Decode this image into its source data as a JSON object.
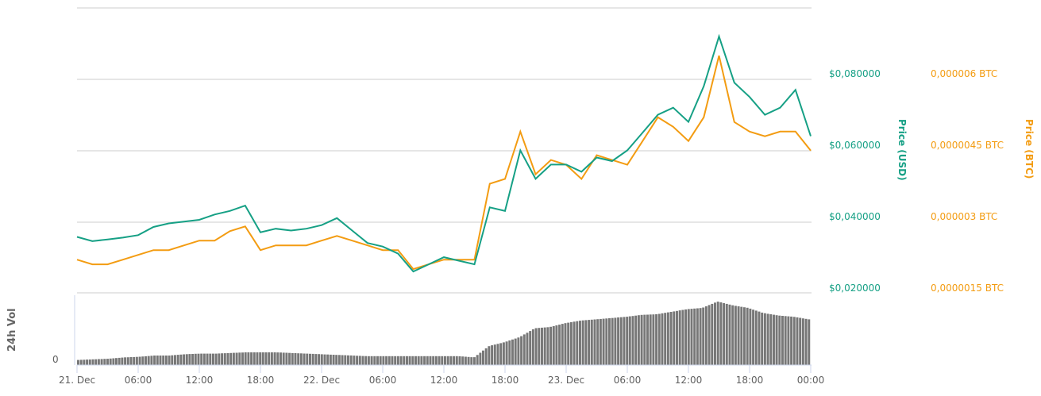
{
  "chart_data": {
    "type": "line",
    "title": "",
    "x_axis": {
      "tick_labels": [
        "21. Dec",
        "06:00",
        "12:00",
        "18:00",
        "22. Dec",
        "06:00",
        "12:00",
        "18:00",
        "23. Dec",
        "06:00",
        "12:00",
        "18:00",
        "00:00"
      ],
      "range_hours": [
        0,
        72
      ]
    },
    "y_axis_left": {
      "title": "Price (USD)",
      "tick_labels": [
        "$0,080000",
        "$0,060000",
        "$0,040000",
        "$0,020000"
      ],
      "ticks": [
        0.08,
        0.06,
        0.04,
        0.02
      ],
      "range": [
        0.02,
        0.1
      ],
      "color": "#16a085"
    },
    "y_axis_right": {
      "title": "Price (BTC)",
      "tick_labels": [
        "0,000006 BTC",
        "0,0000045 BTC",
        "0,000003 BTC",
        "0,0000015 BTC"
      ],
      "ticks": [
        6e-06,
        4.5e-06,
        3e-06,
        1.5e-06
      ],
      "color": "#f39c12"
    },
    "volume_axis": {
      "title": "24h Vol",
      "tick_labels": [
        "0"
      ]
    },
    "grid": true,
    "legend": "none",
    "x_hours": [
      0,
      1.5,
      3,
      4.5,
      6,
      7.5,
      9,
      10.5,
      12,
      13.5,
      15,
      16.5,
      18,
      19.5,
      21,
      22.5,
      24,
      25.5,
      27,
      28.5,
      30,
      31.5,
      33,
      34.5,
      36,
      37.5,
      39,
      40.5,
      42,
      43.5,
      45,
      46.5,
      48,
      49.5,
      51,
      52.5,
      54,
      55.5,
      57,
      58.5,
      60,
      61.5,
      63,
      64.5,
      66,
      67.5,
      69,
      70.5,
      72
    ],
    "series": [
      {
        "name": "Price (USD)",
        "color": "#16a085",
        "values": [
          0.0357,
          0.0345,
          0.035,
          0.0355,
          0.0362,
          0.0385,
          0.0395,
          0.04,
          0.0405,
          0.042,
          0.043,
          0.0445,
          0.037,
          0.038,
          0.0375,
          0.038,
          0.039,
          0.041,
          0.0375,
          0.034,
          0.033,
          0.031,
          0.026,
          0.028,
          0.03,
          0.029,
          0.028,
          0.044,
          0.043,
          0.06,
          0.052,
          0.056,
          0.056,
          0.054,
          0.058,
          0.057,
          0.06,
          0.065,
          0.07,
          0.072,
          0.068,
          0.078,
          0.092,
          0.079,
          0.075,
          0.07,
          0.072,
          0.077,
          0.064
        ]
      },
      {
        "name": "Price (BTC)",
        "color": "#f39c12",
        "values": [
          2.2e-06,
          2.1e-06,
          2.1e-06,
          2.2e-06,
          2.3e-06,
          2.4e-06,
          2.4e-06,
          2.5e-06,
          2.6e-06,
          2.6e-06,
          2.8e-06,
          2.9e-06,
          2.4e-06,
          2.5e-06,
          2.5e-06,
          2.5e-06,
          2.6e-06,
          2.7e-06,
          2.6e-06,
          2.5e-06,
          2.4e-06,
          2.4e-06,
          2e-06,
          2.1e-06,
          2.2e-06,
          2.2e-06,
          2.2e-06,
          3.8e-06,
          3.9e-06,
          4.9e-06,
          4e-06,
          4.3e-06,
          4.2e-06,
          3.9e-06,
          4.4e-06,
          4.3e-06,
          4.2e-06,
          4.7e-06,
          5.2e-06,
          5e-06,
          4.7e-06,
          5.2e-06,
          6.5e-06,
          5.1e-06,
          4.9e-06,
          4.8e-06,
          4.9e-06,
          4.9e-06,
          4.5e-06
        ]
      },
      {
        "name": "24h Vol",
        "color": "#777777",
        "values_relative": [
          0.08,
          0.09,
          0.1,
          0.12,
          0.13,
          0.15,
          0.15,
          0.17,
          0.18,
          0.18,
          0.19,
          0.2,
          0.2,
          0.2,
          0.19,
          0.18,
          0.17,
          0.16,
          0.15,
          0.14,
          0.14,
          0.14,
          0.14,
          0.14,
          0.14,
          0.14,
          0.12,
          0.3,
          0.36,
          0.44,
          0.58,
          0.6,
          0.66,
          0.7,
          0.72,
          0.74,
          0.76,
          0.79,
          0.8,
          0.84,
          0.88,
          0.9,
          1.0,
          0.94,
          0.9,
          0.82,
          0.78,
          0.76,
          0.72
        ]
      }
    ]
  },
  "colors": {
    "usd": "#16a085",
    "btc": "#f39c12",
    "volume": "#777777",
    "grid": "#e6e6e6"
  }
}
